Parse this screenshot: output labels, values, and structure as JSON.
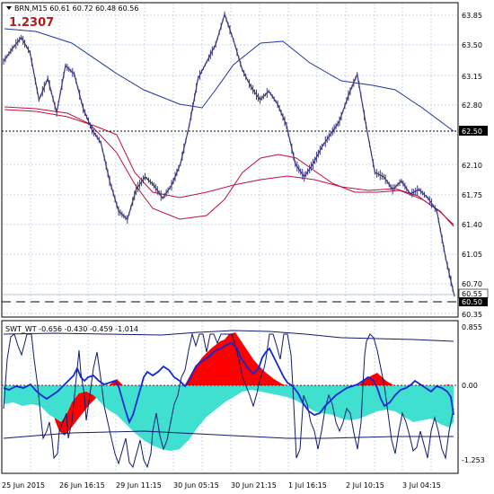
{
  "header": {
    "symbol_line": "BRN,M15  60.61 60.72 60.48 60.56",
    "badge_value": "1.2307"
  },
  "indicator": {
    "label": "SWT_WT -0.656 -0.430 -0.459 -1.014"
  },
  "price_axis_labels": [
    "63.85",
    "63.50",
    "63.15",
    "62.80",
    "62.50",
    "62.10",
    "61.75",
    "61.40",
    "61.05",
    "60.70",
    "60.55",
    "60.50",
    "60.35"
  ],
  "price_boxes": [
    "62.50",
    "60.55",
    "60.50"
  ],
  "indicator_axis_labels": [
    "0.855",
    "0.00",
    "-1.253"
  ],
  "time_axis_labels": [
    "25 Jun 2015",
    "26 Jun 16:15",
    "29 Jun 11:15",
    "30 Jun 05:15",
    "30 Jun 21:15",
    "1 Jul 16:15",
    "2 Jul 10:15",
    "3 Jul 04:15"
  ],
  "colors": {
    "grid": "#c7d9e8",
    "price": "#3b3880",
    "ma_blue": "#2233a0",
    "ma_red": "#c0103a",
    "hist_red": "#ff0000",
    "hist_turquoise": "#40e0d0",
    "osc_blue": "#0d2ad0",
    "osc_navy": "#101a70"
  },
  "chart_data": {
    "type": "line",
    "series": [
      {
        "values": [
          63.3,
          63.45,
          63.58,
          63.4,
          62.85,
          63.1,
          62.7,
          63.25,
          63.15,
          62.75,
          62.5,
          62.35,
          61.9,
          61.55,
          61.45,
          61.8,
          61.95,
          61.85,
          61.7,
          61.85,
          62.1,
          62.55,
          63.1,
          63.3,
          63.5,
          63.85,
          63.55,
          63.2,
          63.0,
          62.85,
          62.95,
          62.8,
          62.55,
          62.1,
          61.95,
          62.1,
          62.3,
          62.45,
          62.6,
          62.9,
          63.15,
          62.55,
          62.0,
          61.95,
          61.8,
          61.9,
          61.75,
          61.8,
          61.7,
          61.55,
          61.0,
          60.55
        ],
        "name": ""
      }
    ]
  }
}
